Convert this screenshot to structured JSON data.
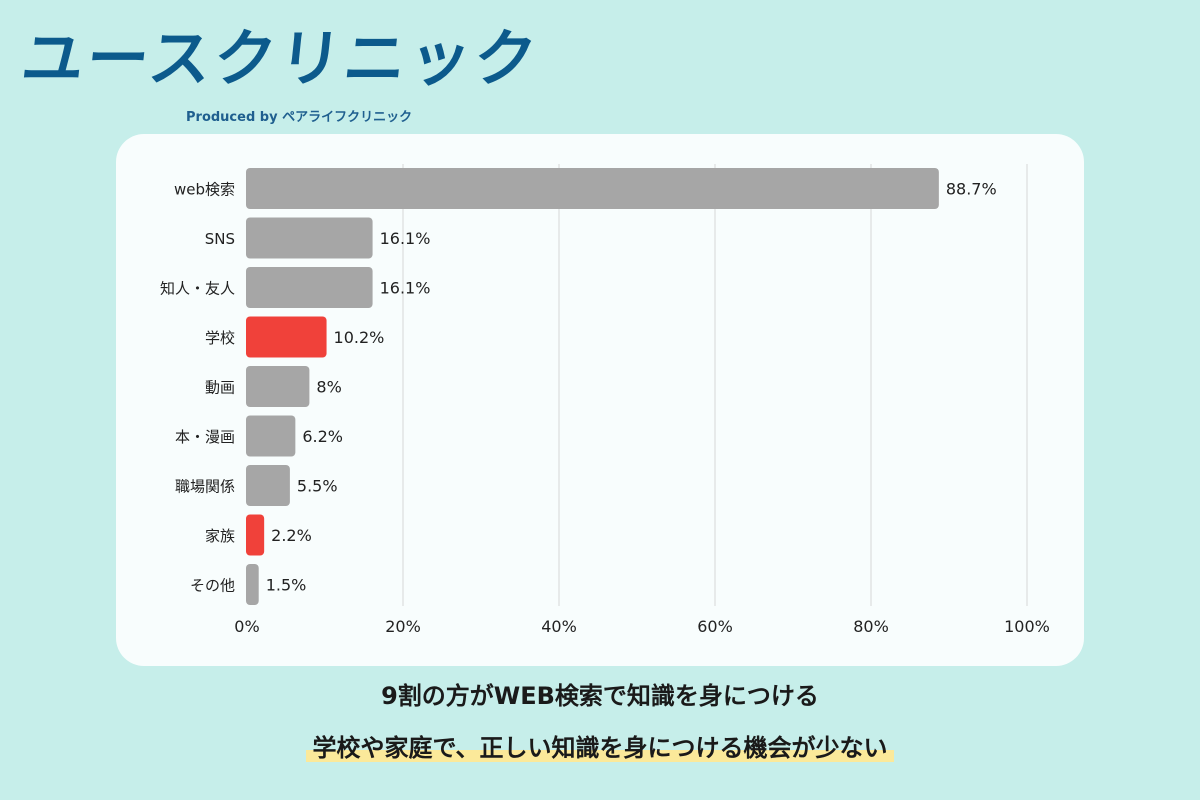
{
  "brand": {
    "title": "ユースクリニック",
    "subtitle": "Produced by ペアライフクリニック"
  },
  "colors": {
    "background": "#c6eeea",
    "brand": "#0c5a8c",
    "bar": "#a6a6a6",
    "highlight": "#f0413a",
    "grid": "#d6d6d6",
    "marker": "#fbe99a"
  },
  "chart_data": {
    "type": "bar",
    "orientation": "horizontal",
    "categories": [
      "web検索",
      "SNS",
      "知人・友人",
      "学校",
      "動画",
      "本・漫画",
      "職場関係",
      "家族",
      "その他"
    ],
    "values": [
      88.7,
      16.1,
      16.1,
      10.2,
      8,
      6.2,
      5.5,
      2.2,
      1.5
    ],
    "value_labels": [
      "88.7%",
      "16.1%",
      "16.1%",
      "10.2%",
      "8%",
      "6.2%",
      "5.5%",
      "2.2%",
      "1.5%"
    ],
    "highlighted": [
      "学校",
      "家族"
    ],
    "xlim": [
      0,
      100
    ],
    "xticks": [
      0,
      20,
      40,
      60,
      80,
      100
    ],
    "xtick_labels": [
      "0%",
      "20%",
      "40%",
      "60%",
      "80%",
      "100%"
    ],
    "grid": true,
    "title": "",
    "xlabel": "",
    "ylabel": ""
  },
  "captions": {
    "line1": "9割の方がWEB検索で知識を身につける",
    "line2": "学校や家庭で、正しい知識を身につける機会が少ない"
  }
}
